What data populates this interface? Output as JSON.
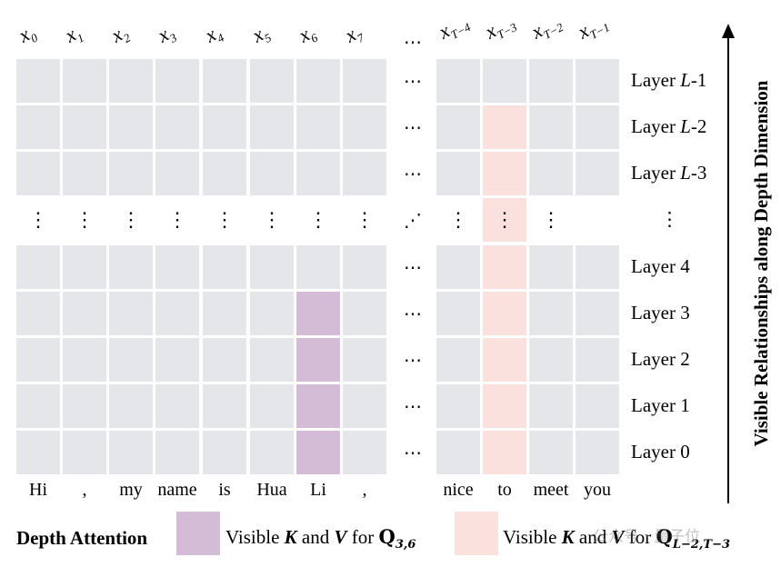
{
  "column_headers": [
    {
      "base": "x",
      "sub": "0"
    },
    {
      "base": "x",
      "sub": "1"
    },
    {
      "base": "x",
      "sub": "2"
    },
    {
      "base": "x",
      "sub": "3"
    },
    {
      "base": "x",
      "sub": "4"
    },
    {
      "base": "x",
      "sub": "5"
    },
    {
      "base": "x",
      "sub": "6"
    },
    {
      "base": "x",
      "sub": "7"
    },
    {
      "base": "x",
      "sub": "T−4"
    },
    {
      "base": "x",
      "sub": "T−3"
    },
    {
      "base": "x",
      "sub": "T−2"
    },
    {
      "base": "x",
      "sub": "T−1"
    }
  ],
  "ellipsis": "⋯",
  "diag_ellipsis": "⋰",
  "vdots": "⋮",
  "rows": [
    {
      "prefix": "Layer ",
      "var": "L",
      "suffix": "-1"
    },
    {
      "prefix": "Layer ",
      "var": "L",
      "suffix": "-2"
    },
    {
      "prefix": "Layer ",
      "var": "L",
      "suffix": "-3"
    },
    {
      "prefix": "",
      "var": "",
      "suffix": "",
      "is_dots": true
    },
    {
      "prefix": "Layer 4",
      "var": "",
      "suffix": ""
    },
    {
      "prefix": "Layer 3",
      "var": "",
      "suffix": ""
    },
    {
      "prefix": "Layer 2",
      "var": "",
      "suffix": ""
    },
    {
      "prefix": "Layer 1",
      "var": "",
      "suffix": ""
    },
    {
      "prefix": "Layer 0",
      "var": "",
      "suffix": ""
    }
  ],
  "tokens_left": [
    "Hi",
    ",",
    "my",
    "name",
    "is",
    "Hua",
    "Li",
    ","
  ],
  "tokens_right": [
    "nice",
    "to",
    "meet",
    "you"
  ],
  "highlight": {
    "purple_column": 6,
    "purple_rows": [
      5,
      6,
      7,
      8
    ],
    "pink_column": 9,
    "pink_rows": [
      1,
      2,
      3,
      4,
      5,
      6,
      7,
      8
    ]
  },
  "axis_label": "Visible Relationships along Depth Dimension",
  "legend": {
    "title": "Depth Attention",
    "item1": {
      "text": "Visible ",
      "k": "K",
      "and": " and ",
      "v": "V",
      "for": " for ",
      "q": "Q",
      "q_sub": "3,6"
    },
    "item2": {
      "text": "Visible ",
      "k": "K",
      "and": " and ",
      "v": "V",
      "for": " for ",
      "q": "Q",
      "q_sub": "L−2,T−3"
    }
  },
  "watermark": "公众号 · 量子位",
  "colors": {
    "cell": "#e5e6e9",
    "purple": "#d4bcd6",
    "pink": "#fbe1de"
  }
}
